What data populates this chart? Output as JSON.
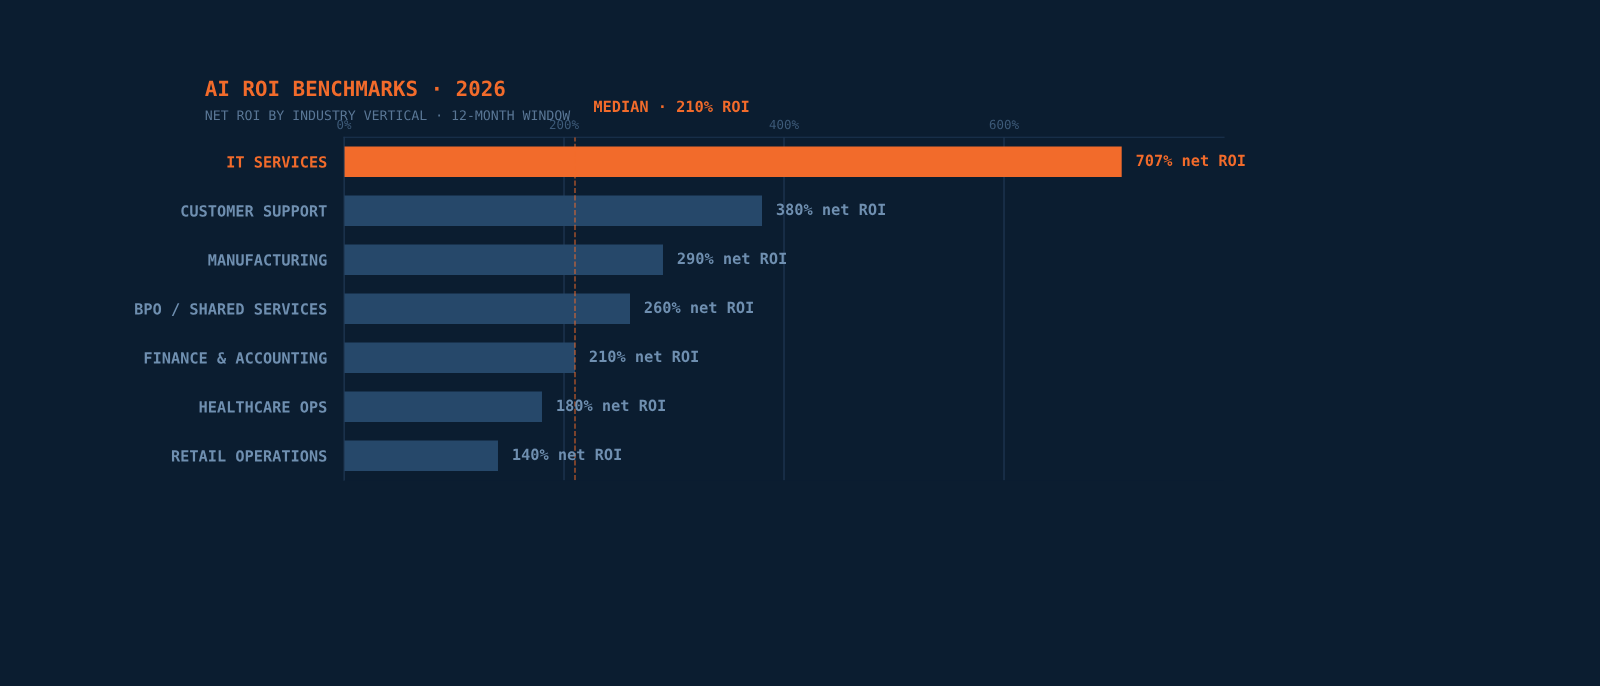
{
  "chart_data": {
    "type": "bar",
    "orientation": "horizontal",
    "title": "AI ROI BENCHMARKS · 2026",
    "subtitle": "NET ROI BY INDUSTRY VERTICAL · 12-MONTH WINDOW",
    "categories": [
      "IT SERVICES",
      "CUSTOMER SUPPORT",
      "MANUFACTURING",
      "BPO / SHARED SERVICES",
      "FINANCE & ACCOUNTING",
      "HEALTHCARE OPS",
      "RETAIL OPERATIONS"
    ],
    "values": [
      707,
      380,
      290,
      260,
      210,
      180,
      140
    ],
    "colors": [
      "#f26b2b",
      "#26486a",
      "#26486a",
      "#26486a",
      "#26486a",
      "#26486a",
      "#26486a"
    ],
    "value_labels": [
      "707% net ROI",
      "380% net ROI",
      "290% net ROI",
      "260% net ROI",
      "210% net ROI",
      "180% net ROI",
      "140% net ROI"
    ],
    "xlim": [
      0,
      800
    ],
    "xticks": [
      {
        "value": 0,
        "label": "0%"
      },
      {
        "value": 200,
        "label": "200%"
      },
      {
        "value": 400,
        "label": "400%"
      },
      {
        "value": 600,
        "label": "600%"
      }
    ],
    "grid": "x",
    "ref_lines": [
      {
        "axis": "x",
        "value": 210,
        "label": "MEDIAN · 210% ROI",
        "color": "#f26b2b",
        "line_style": "dashed"
      }
    ]
  }
}
